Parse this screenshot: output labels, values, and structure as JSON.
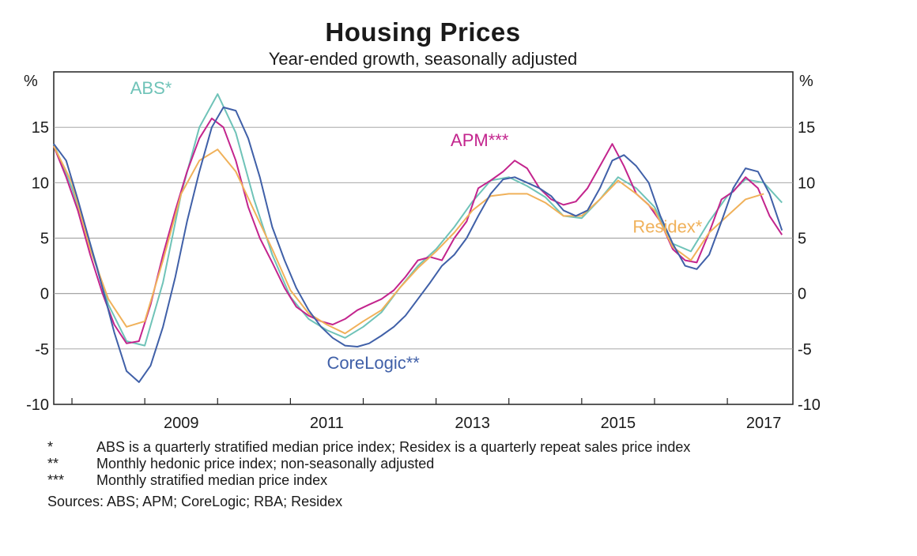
{
  "chart_data": {
    "type": "line",
    "title": "Housing Prices",
    "subtitle": "Year-ended growth, seasonally adjusted",
    "ylabel_left": "%",
    "ylabel_right": "%",
    "ylim": [
      -10,
      20
    ],
    "yticks": [
      -10,
      -5,
      0,
      5,
      10,
      15
    ],
    "xlim": [
      2007.75,
      2017.9
    ],
    "xticks": [
      2009,
      2011,
      2013,
      2015,
      2017
    ],
    "xtick_labels": [
      "2009",
      "2011",
      "2013",
      "2015",
      "2017"
    ],
    "grid": true,
    "series": [
      {
        "name": "ABS*",
        "color": "#6fc3b8",
        "label_pos": [
          2008.8,
          18
        ],
        "x": [
          2007.75,
          2008.0,
          2008.25,
          2008.5,
          2008.75,
          2009.0,
          2009.25,
          2009.5,
          2009.75,
          2010.0,
          2010.25,
          2010.5,
          2010.75,
          2011.0,
          2011.25,
          2011.5,
          2011.75,
          2012.0,
          2012.25,
          2012.5,
          2012.75,
          2013.0,
          2013.25,
          2013.5,
          2013.75,
          2014.0,
          2014.25,
          2014.5,
          2014.75,
          2015.0,
          2015.25,
          2015.5,
          2015.75,
          2016.0,
          2016.25,
          2016.5,
          2016.75,
          2017.0,
          2017.25,
          2017.5,
          2017.75
        ],
        "y": [
          13.5,
          9.5,
          4.5,
          -1.0,
          -4.3,
          -4.7,
          1.0,
          9.0,
          15.0,
          18.0,
          14.5,
          8.5,
          3.5,
          -0.3,
          -2.3,
          -3.3,
          -4.0,
          -3.0,
          -1.7,
          0.5,
          2.5,
          4.0,
          6.0,
          8.3,
          10.2,
          10.5,
          9.7,
          8.7,
          7.0,
          6.8,
          8.5,
          10.5,
          9.5,
          7.8,
          4.5,
          3.8,
          6.5,
          8.8,
          10.3,
          10.0,
          8.2
        ]
      },
      {
        "name": "APM***",
        "color": "#c3248d",
        "label_pos": [
          2013.2,
          13.3
        ],
        "x": [
          2007.75,
          2007.92,
          2008.08,
          2008.25,
          2008.42,
          2008.58,
          2008.75,
          2008.92,
          2009.08,
          2009.25,
          2009.42,
          2009.58,
          2009.75,
          2009.92,
          2010.08,
          2010.25,
          2010.42,
          2010.58,
          2010.75,
          2010.92,
          2011.08,
          2011.25,
          2011.42,
          2011.58,
          2011.75,
          2011.92,
          2012.08,
          2012.25,
          2012.42,
          2012.58,
          2012.75,
          2012.92,
          2013.08,
          2013.25,
          2013.42,
          2013.58,
          2013.75,
          2013.92,
          2014.08,
          2014.25,
          2014.42,
          2014.58,
          2014.75,
          2014.92,
          2015.08,
          2015.25,
          2015.42,
          2015.58,
          2015.75,
          2015.92,
          2016.08,
          2016.25,
          2016.42,
          2016.58,
          2016.75,
          2016.92,
          2017.08,
          2017.25,
          2017.42,
          2017.58,
          2017.75
        ],
        "y": [
          13.3,
          10.5,
          7.5,
          3.5,
          0.0,
          -2.8,
          -4.5,
          -4.3,
          -1.0,
          3.5,
          7.5,
          11.0,
          14.0,
          15.8,
          15.0,
          12.0,
          7.8,
          5.0,
          2.8,
          0.5,
          -1.2,
          -2.0,
          -2.5,
          -2.8,
          -2.3,
          -1.5,
          -1.0,
          -0.5,
          0.3,
          1.5,
          3.0,
          3.3,
          3.0,
          5.0,
          6.5,
          9.5,
          10.2,
          11.0,
          12.0,
          11.3,
          9.5,
          8.5,
          8.0,
          8.3,
          9.5,
          11.5,
          13.5,
          11.5,
          9.0,
          8.0,
          6.5,
          4.0,
          3.0,
          2.8,
          5.5,
          8.5,
          9.2,
          10.5,
          9.5,
          7.0,
          5.3
        ]
      },
      {
        "name": "Residex*",
        "color": "#f0b15a",
        "label_pos": [
          2015.7,
          5.5
        ],
        "x": [
          2007.75,
          2008.0,
          2008.25,
          2008.5,
          2008.75,
          2009.0,
          2009.25,
          2009.5,
          2009.75,
          2010.0,
          2010.25,
          2010.5,
          2010.75,
          2011.0,
          2011.25,
          2011.5,
          2011.75,
          2012.0,
          2012.25,
          2012.5,
          2012.75,
          2013.0,
          2013.25,
          2013.5,
          2013.75,
          2014.0,
          2014.25,
          2014.5,
          2014.75,
          2015.0,
          2015.25,
          2015.5,
          2015.75,
          2016.0,
          2016.25,
          2016.5,
          2016.75,
          2017.0,
          2017.25,
          2017.5
        ],
        "y": [
          13.3,
          10.0,
          4.0,
          -0.5,
          -3.0,
          -2.5,
          3.0,
          9.0,
          12.0,
          13.0,
          11.0,
          7.5,
          4.0,
          0.3,
          -1.8,
          -2.8,
          -3.6,
          -2.5,
          -1.5,
          0.5,
          2.3,
          3.8,
          5.5,
          7.5,
          8.8,
          9.0,
          9.0,
          8.2,
          7.0,
          7.0,
          8.5,
          10.2,
          9.0,
          7.5,
          4.2,
          3.0,
          5.5,
          7.0,
          8.5,
          9.0
        ]
      },
      {
        "name": "CoreLogic**",
        "color": "#4060a8",
        "label_pos": [
          2011.5,
          -6.8
        ],
        "x": [
          2007.75,
          2007.92,
          2008.08,
          2008.25,
          2008.42,
          2008.58,
          2008.75,
          2008.92,
          2009.08,
          2009.25,
          2009.42,
          2009.58,
          2009.75,
          2009.92,
          2010.08,
          2010.25,
          2010.42,
          2010.58,
          2010.75,
          2010.92,
          2011.08,
          2011.25,
          2011.42,
          2011.58,
          2011.75,
          2011.92,
          2012.08,
          2012.25,
          2012.42,
          2012.58,
          2012.75,
          2012.92,
          2013.08,
          2013.25,
          2013.42,
          2013.58,
          2013.75,
          2013.92,
          2014.08,
          2014.25,
          2014.42,
          2014.58,
          2014.75,
          2014.92,
          2015.08,
          2015.25,
          2015.42,
          2015.58,
          2015.75,
          2015.92,
          2016.08,
          2016.25,
          2016.42,
          2016.58,
          2016.75,
          2016.92,
          2017.08,
          2017.25,
          2017.42,
          2017.58,
          2017.75
        ],
        "y": [
          13.5,
          12.0,
          8.5,
          4.5,
          0.5,
          -3.5,
          -7.0,
          -8.0,
          -6.5,
          -3.0,
          1.5,
          6.5,
          11.0,
          15.0,
          16.8,
          16.5,
          14.0,
          10.5,
          6.0,
          3.0,
          0.5,
          -1.5,
          -3.0,
          -4.0,
          -4.7,
          -4.8,
          -4.5,
          -3.8,
          -3.0,
          -2.0,
          -0.5,
          1.0,
          2.5,
          3.5,
          5.0,
          7.0,
          9.0,
          10.3,
          10.5,
          10.0,
          9.5,
          8.8,
          7.5,
          7.0,
          7.5,
          9.5,
          12.0,
          12.5,
          11.5,
          10.0,
          7.0,
          4.5,
          2.5,
          2.2,
          3.5,
          6.5,
          9.5,
          11.3,
          11.0,
          9.0,
          5.7
        ]
      }
    ]
  },
  "notes": [
    {
      "mark": "*",
      "text": "ABS is a quarterly stratified median price index; Residex is a quarterly repeat sales price index"
    },
    {
      "mark": "**",
      "text": "Monthly hedonic price index; non-seasonally adjusted"
    },
    {
      "mark": "***",
      "text": "Monthly stratified median price index"
    }
  ],
  "sources": "Sources: ABS; APM; CoreLogic; RBA; Residex"
}
